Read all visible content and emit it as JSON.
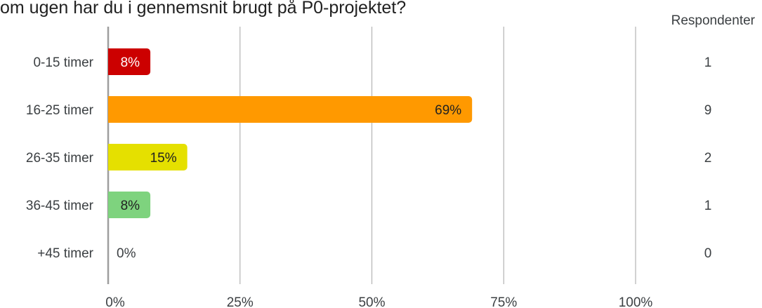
{
  "chart_data": {
    "type": "bar",
    "orientation": "horizontal",
    "title": "om ugen har du i gennemsnit brugt på P0-projektet?",
    "categories": [
      "0-15 timer",
      "16-25 timer",
      "26-35 timer",
      "36-45 timer",
      "+45 timer"
    ],
    "values": [
      8,
      69,
      15,
      8,
      0
    ],
    "value_labels": [
      "8%",
      "69%",
      "15%",
      "8%",
      "0%"
    ],
    "counts": [
      1,
      9,
      2,
      1,
      0
    ],
    "count_header": "Respondenter",
    "bar_colors": [
      "#cc0000",
      "#ff9900",
      "#e5e000",
      "#7ed37e",
      "#cccccc"
    ],
    "label_colors": [
      "#ffffff",
      "#212121",
      "#212121",
      "#212121",
      "#3c4043"
    ],
    "xlim": [
      0,
      100
    ],
    "xticks": [
      0,
      25,
      50,
      75,
      100
    ],
    "xtick_labels": [
      "0%",
      "25%",
      "50%",
      "75%",
      "100%"
    ],
    "grid": true,
    "gridline_color": "#b3b3b3"
  }
}
